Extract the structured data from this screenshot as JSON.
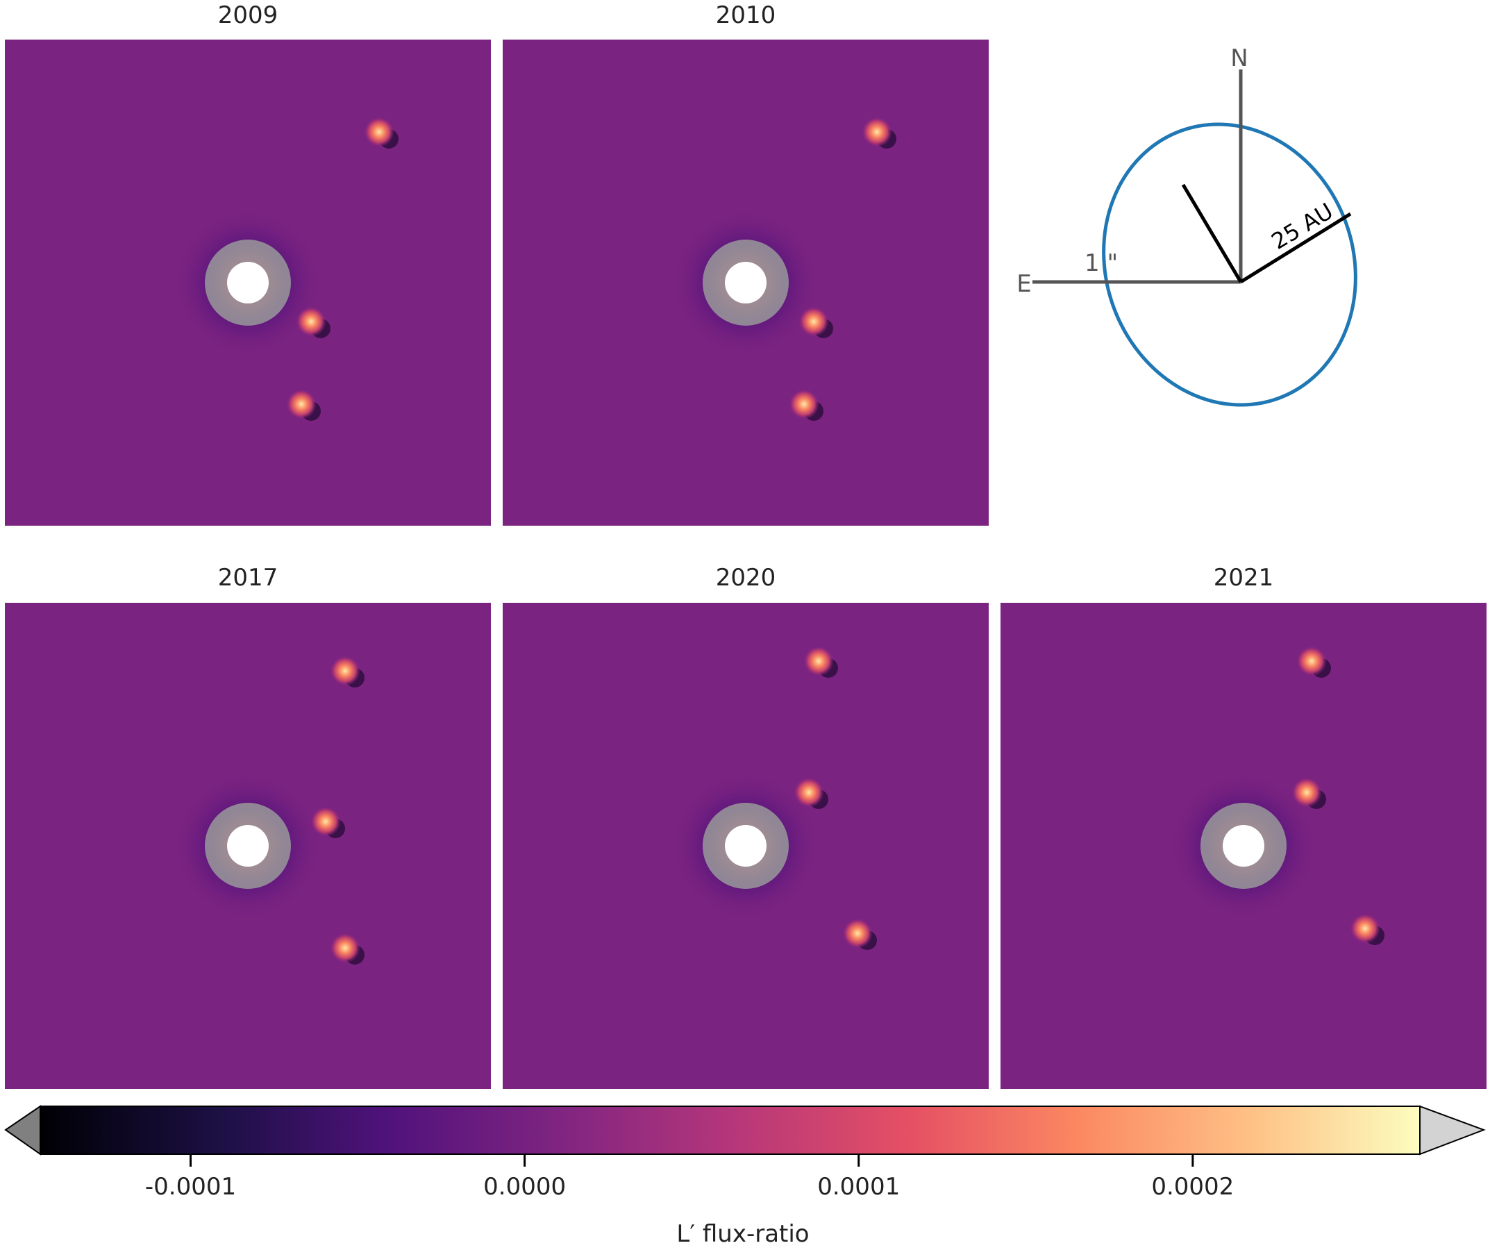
{
  "panels": [
    {
      "year": "2009",
      "planets": [
        [
          0.77,
          0.19
        ],
        [
          0.63,
          0.58
        ],
        [
          0.61,
          0.75
        ]
      ]
    },
    {
      "year": "2010",
      "planets": [
        [
          0.77,
          0.19
        ],
        [
          0.64,
          0.58
        ],
        [
          0.62,
          0.75
        ]
      ]
    },
    {
      "year": "2017",
      "planets": [
        [
          0.7,
          0.14
        ],
        [
          0.66,
          0.45
        ],
        [
          0.7,
          0.71
        ]
      ]
    },
    {
      "year": "2020",
      "planets": [
        [
          0.65,
          0.12
        ],
        [
          0.63,
          0.39
        ],
        [
          0.73,
          0.68
        ]
      ]
    },
    {
      "year": "2021",
      "planets": [
        [
          0.64,
          0.12
        ],
        [
          0.63,
          0.39
        ],
        [
          0.75,
          0.67
        ]
      ]
    }
  ],
  "compass": {
    "north_label": "N",
    "east_label": "E",
    "scale_label": "1 \"",
    "distance_label": "25 AU",
    "orbit_color": "#1f77b4"
  },
  "colorbar": {
    "label": "L′ flux-ratio",
    "ticks": [
      "-0.0001",
      "0.0000",
      "0.0001",
      "0.0002"
    ],
    "tick_values": [
      -0.0001,
      0.0,
      0.0001,
      0.0002
    ],
    "range": [
      -0.000145,
      0.000268
    ],
    "under_color": "#808080",
    "over_color": "#d3d3d3"
  }
}
